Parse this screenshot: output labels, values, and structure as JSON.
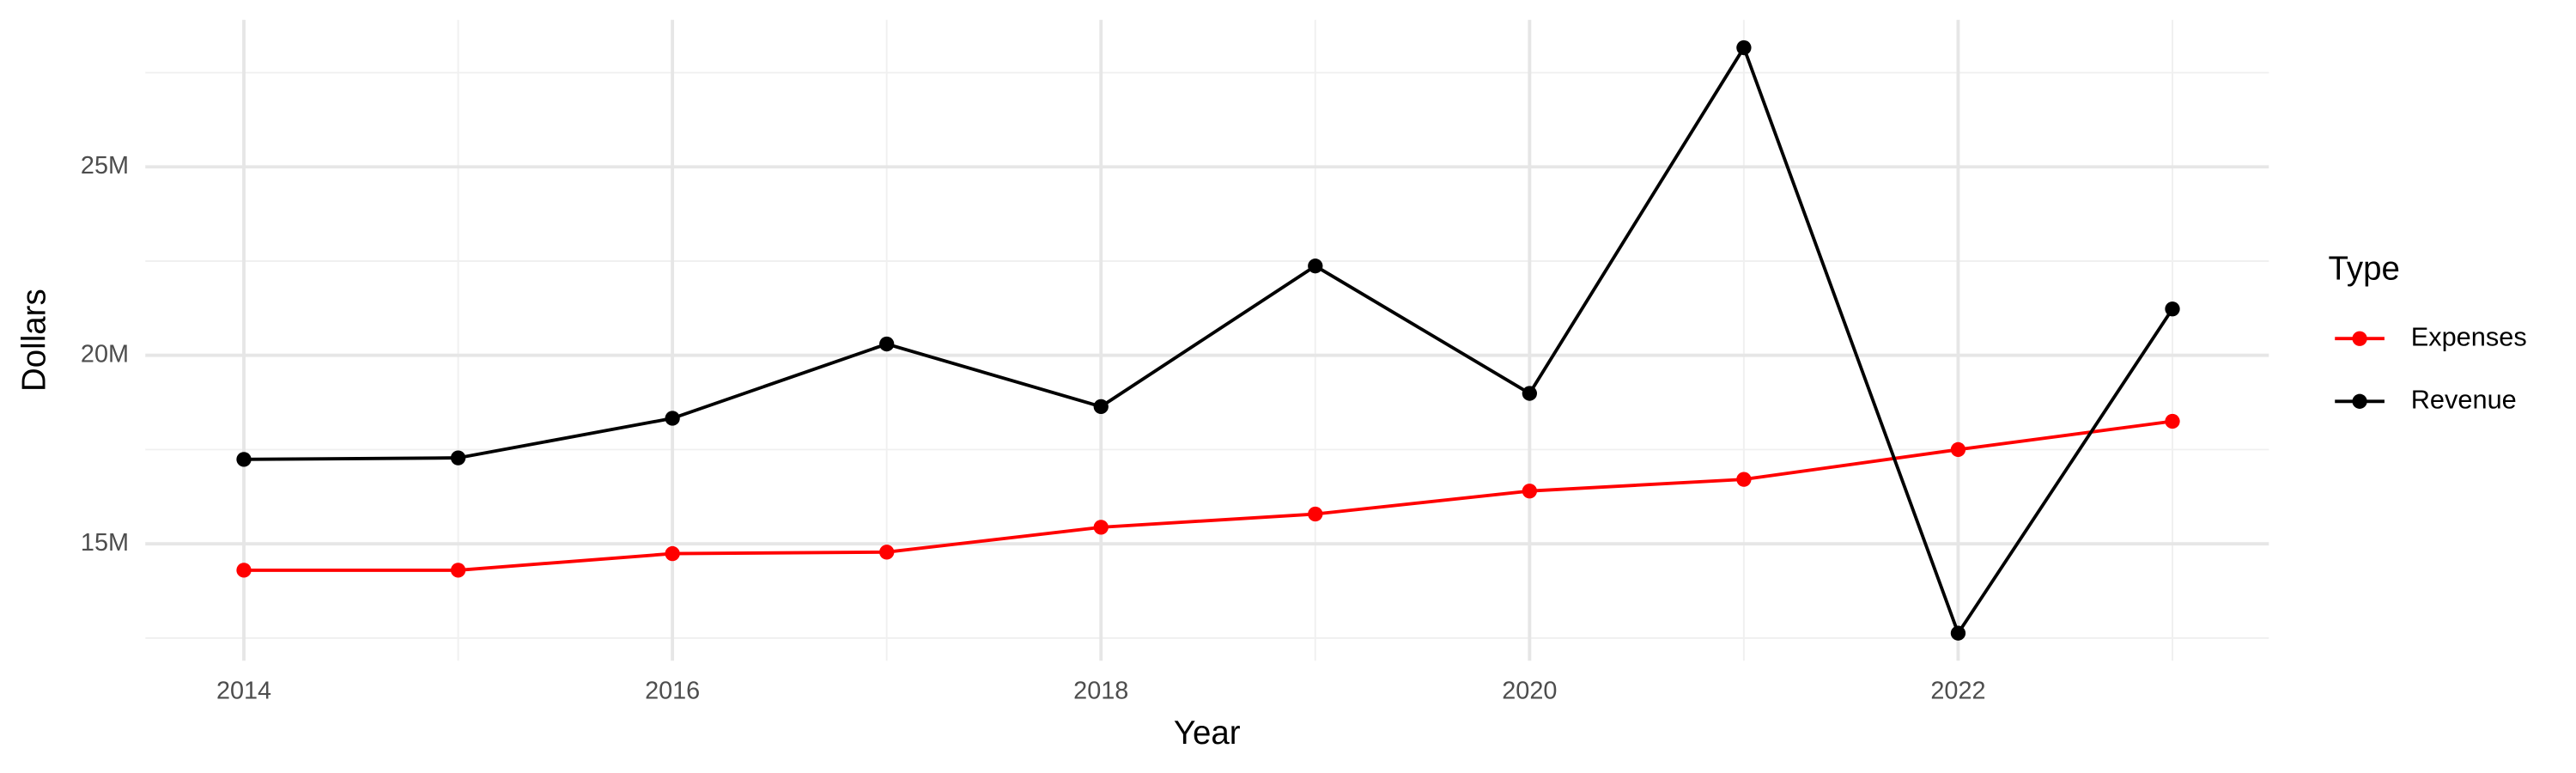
{
  "chart_data": {
    "type": "line",
    "x_label": "Year",
    "y_label": "Dollars",
    "x": [
      2014,
      2015,
      2016,
      2017,
      2018,
      2019,
      2020,
      2021,
      2022,
      2023
    ],
    "series": [
      {
        "name": "Expenses",
        "color": "#ff0000",
        "values": [
          14300000,
          14300000,
          14740000,
          14780000,
          15440000,
          15790000,
          16400000,
          16710000,
          17500000,
          18250000
        ]
      },
      {
        "name": "Revenue",
        "color": "#000000",
        "values": [
          17240000,
          17280000,
          18330000,
          20300000,
          18640000,
          22370000,
          18990000,
          28160000,
          12630000,
          21230000
        ]
      }
    ],
    "xlim": [
      2013.54,
      2023.45
    ],
    "xticks": [
      2014,
      2016,
      2018,
      2020,
      2022
    ],
    "ylim": [
      11900000,
      28900000
    ],
    "yticks": [
      {
        "value": 15000000,
        "label": "15M"
      },
      {
        "value": 20000000,
        "label": "20M"
      },
      {
        "value": 25000000,
        "label": "25M"
      }
    ],
    "grid": true,
    "legend": {
      "title": "Type",
      "position": "right"
    }
  }
}
